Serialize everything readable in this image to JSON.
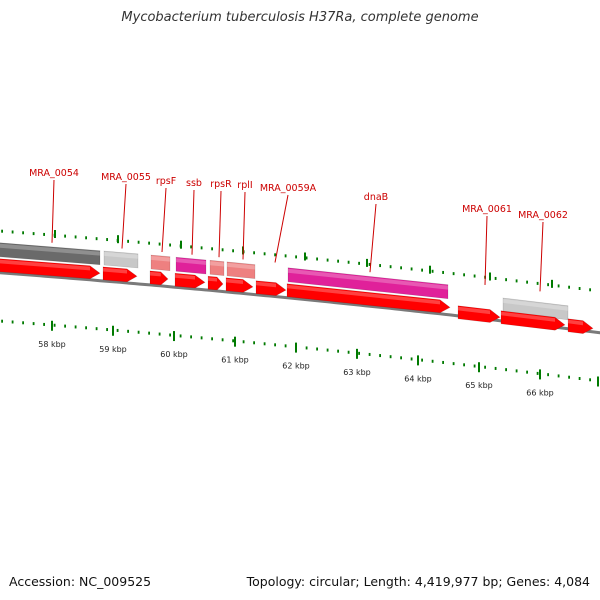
{
  "title": "Mycobacterium tuberculosis H37Ra, complete genome",
  "accession": "Accession: NC_009525",
  "topology": "Topology: circular; Length: 4,419,977 bp; Genes: 4,084",
  "colors": {
    "gene_label": "#cc0000",
    "cds_red": "#ff0000",
    "ticks_green": "#007a00",
    "backbone": "#7a7a7a",
    "pseudo_dark": "#6a6a6a",
    "pseudo_light": "#c8c8c8",
    "magenta": "#e0219a",
    "salmon": "#ee8080"
  },
  "kbp_labels": [
    "58 kbp",
    "59 kbp",
    "60 kbp",
    "61 kbp",
    "62 kbp",
    "63 kbp",
    "64 kbp",
    "65 kbp",
    "66 kbp"
  ],
  "gene_labels": [
    "MRA_0054",
    "MRA_0055",
    "rpsF",
    "ssb",
    "rpsR",
    "rplI",
    "MRA_0059A",
    "dnaB",
    "MRA_0061",
    "MRA_0062"
  ]
}
